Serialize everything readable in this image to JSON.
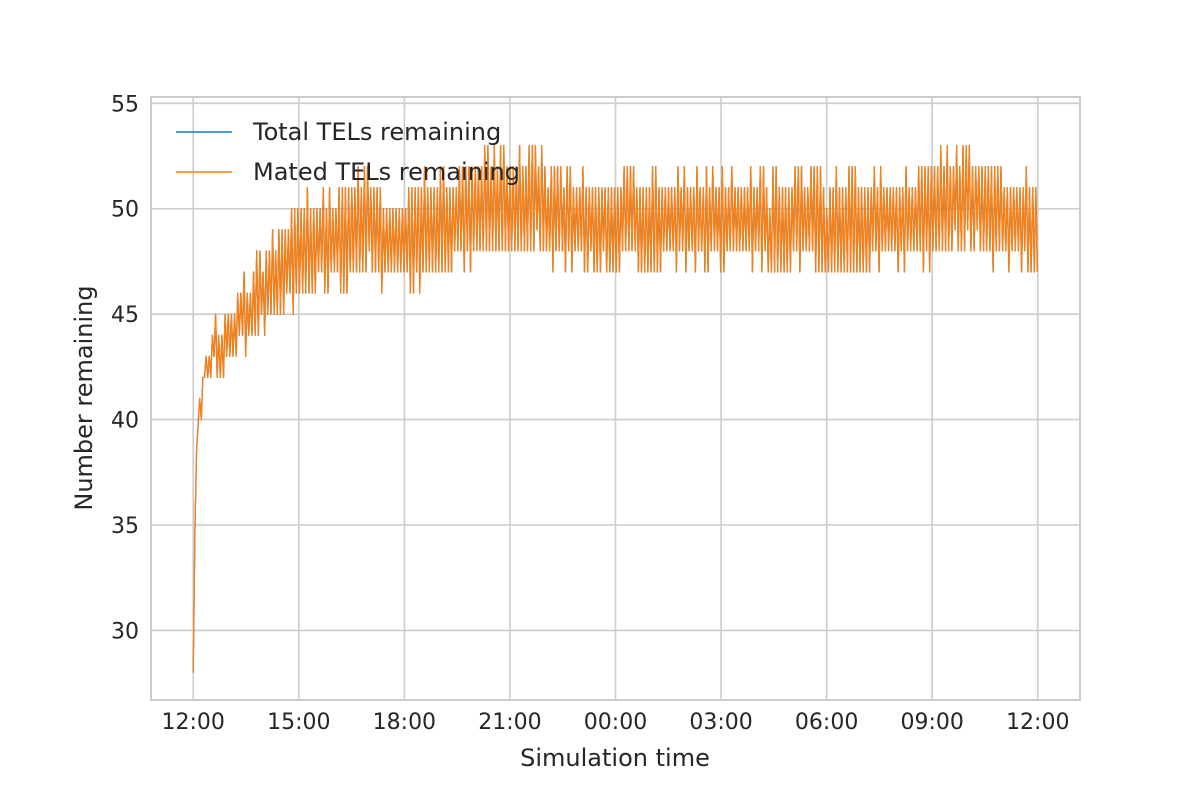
{
  "chart_data": {
    "type": "line",
    "title": "",
    "xlabel": "Simulation time",
    "ylabel": "Number remaining",
    "x_ticks": [
      "12:00",
      "15:00",
      "18:00",
      "21:00",
      "00:00",
      "03:00",
      "06:00",
      "09:00",
      "12:00"
    ],
    "x_tick_hours": [
      0,
      3,
      6,
      9,
      12,
      15,
      18,
      21,
      24
    ],
    "xlim_hours": [
      -1.2,
      25.2
    ],
    "y_ticks": [
      30,
      35,
      40,
      45,
      50,
      55
    ],
    "ylim": [
      26.7,
      55.3
    ],
    "grid": true,
    "legend_position": "upper-left",
    "colors": {
      "total": "#1f77b4",
      "mated": "#ff7f0e",
      "grid": "#cccccc"
    },
    "series": [
      {
        "name": "Total TELs remaining",
        "color": "#1f77b4",
        "x_hours": [
          0,
          0.05,
          0.1,
          0.2,
          0.3,
          0.4,
          0.5,
          0.75,
          1.0,
          1.25,
          1.5,
          1.75,
          2.0,
          2.25,
          2.5,
          2.75,
          3.0,
          3.5,
          4.0,
          4.5,
          5.0,
          5.5,
          6.0,
          6.5,
          7.0,
          7.5,
          8.0,
          8.5,
          9.0,
          9.5,
          10.0,
          10.5,
          11.0,
          11.5,
          12.0,
          12.5,
          13.0,
          13.5,
          14.0,
          14.5,
          15.0,
          15.5,
          16.0,
          16.5,
          17.0,
          17.5,
          18.0,
          18.5,
          19.0,
          19.5,
          20.0,
          20.5,
          21.0,
          21.5,
          22.0,
          22.5,
          23.0,
          23.5,
          24.0
        ],
        "values": [
          28,
          35,
          39,
          41,
          42,
          42.5,
          43,
          43.5,
          44,
          44.5,
          45,
          45.5,
          46,
          46.5,
          47,
          47.5,
          48,
          48.5,
          48.5,
          49,
          49,
          48.5,
          48.5,
          49,
          49,
          49.5,
          50,
          50,
          50.5,
          50,
          50,
          49.5,
          49.5,
          49,
          49.5,
          49.5,
          49,
          49.5,
          49.5,
          49.5,
          49.5,
          49.5,
          49.5,
          49,
          49.5,
          49.5,
          49,
          49,
          49.5,
          49.5,
          49.5,
          49.5,
          50,
          50,
          50.5,
          50,
          49.5,
          49.5,
          49
        ]
      },
      {
        "name": "Mated TELs remaining",
        "color": "#ff7f0e",
        "x_hours": [
          0,
          0.05,
          0.1,
          0.2,
          0.3,
          0.4,
          0.5,
          0.75,
          1.0,
          1.25,
          1.5,
          1.75,
          2.0,
          2.25,
          2.5,
          2.75,
          3.0,
          3.5,
          4.0,
          4.5,
          5.0,
          5.5,
          6.0,
          6.5,
          7.0,
          7.5,
          8.0,
          8.5,
          9.0,
          9.5,
          10.0,
          10.5,
          11.0,
          11.5,
          12.0,
          12.5,
          13.0,
          13.5,
          14.0,
          14.5,
          15.0,
          15.5,
          16.0,
          16.5,
          17.0,
          17.5,
          18.0,
          18.5,
          19.0,
          19.5,
          20.0,
          20.5,
          21.0,
          21.5,
          22.0,
          22.5,
          23.0,
          23.5,
          24.0
        ],
        "values": [
          28,
          35,
          39,
          41,
          42,
          42.5,
          43,
          43.5,
          44,
          44.5,
          45,
          45.5,
          46,
          46.5,
          47,
          47.5,
          48,
          48.5,
          48.5,
          49,
          49,
          48.5,
          48.5,
          49,
          49,
          49.5,
          50,
          50,
          50.5,
          50,
          50,
          49.5,
          49.5,
          49,
          49.5,
          49.5,
          49,
          49.5,
          49.5,
          49.5,
          49.5,
          49.5,
          49.5,
          49,
          49.5,
          49.5,
          49,
          49,
          49.5,
          49.5,
          49.5,
          49.5,
          50,
          50,
          50.5,
          50,
          49.5,
          49.5,
          49
        ]
      }
    ],
    "noise_band_hours": [
      0.1,
      1,
      2,
      3,
      4,
      5,
      6,
      7,
      8,
      9,
      10,
      11,
      12,
      13,
      14,
      15,
      16,
      17,
      18,
      19,
      20,
      21,
      22,
      23,
      24
    ],
    "noise_amplitude": [
      1,
      1.5,
      2,
      2.5,
      2.5,
      2.5,
      2.5,
      2.5,
      2.5,
      2.5,
      2.5,
      2.5,
      2.5,
      2.5,
      2.5,
      2.5,
      2.5,
      2.5,
      2.5,
      2.5,
      2.5,
      2.5,
      2.5,
      2.5,
      2.5
    ]
  }
}
